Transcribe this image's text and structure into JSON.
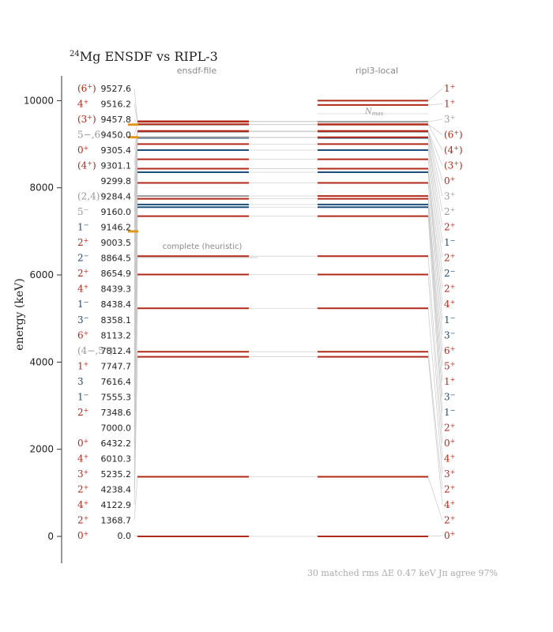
{
  "chart_data": {
    "type": "level-scheme",
    "title_mass": "24",
    "title_rest": "Mg  ENSDF vs RIPL-3",
    "ylabel": "energy (keV)",
    "yticks": [
      0,
      2000,
      4000,
      6000,
      8000,
      10000
    ],
    "ylim": [
      -600,
      10550
    ],
    "left_column_label": "ensdf-file",
    "right_column_label": "ripl3-local",
    "annotation_text": "complete (heuristic)",
    "annotation_energy": 6400,
    "nmax_label": "N",
    "nmax_sub": "max",
    "nmax_energy": 9700,
    "summary": "30 matched    rms ΔE 0.47 keV    Jπ agree 97%",
    "colors": {
      "even": "#b22a19",
      "odd": "#1c4f7c",
      "uncertain": "#999999",
      "marker": "#e0961e"
    },
    "marker_energies": [
      9450.0,
      9160.0,
      7000.0
    ],
    "ensdf_levels": [
      {
        "e": "0.0",
        "jp": "0+",
        "p": "even"
      },
      {
        "e": "1368.7",
        "jp": "2+",
        "p": "even"
      },
      {
        "e": "4122.9",
        "jp": "4+",
        "p": "even"
      },
      {
        "e": "4238.4",
        "jp": "2+",
        "p": "even"
      },
      {
        "e": "5235.2",
        "jp": "3+",
        "p": "even"
      },
      {
        "e": "6010.3",
        "jp": "4+",
        "p": "even"
      },
      {
        "e": "6432.2",
        "jp": "0+",
        "p": "even"
      },
      {
        "e": "7000.0",
        "jp": "",
        "p": "none"
      },
      {
        "e": "7348.6",
        "jp": "2+",
        "p": "even"
      },
      {
        "e": "7555.3",
        "jp": "1−",
        "p": "odd"
      },
      {
        "e": "7616.4",
        "jp": "3",
        "p": "odd"
      },
      {
        "e": "7747.7",
        "jp": "1+",
        "p": "even"
      },
      {
        "e": "7812.4",
        "jp": "(4−,5+)",
        "p": "uncertain"
      },
      {
        "e": "8113.2",
        "jp": "6+",
        "p": "even"
      },
      {
        "e": "8358.1",
        "jp": "3−",
        "p": "odd"
      },
      {
        "e": "8438.4",
        "jp": "1−",
        "p": "odd"
      },
      {
        "e": "8439.3",
        "jp": "4+",
        "p": "even"
      },
      {
        "e": "8654.9",
        "jp": "2+",
        "p": "even"
      },
      {
        "e": "8864.5",
        "jp": "2−",
        "p": "odd"
      },
      {
        "e": "9003.5",
        "jp": "2+",
        "p": "even"
      },
      {
        "e": "9146.2",
        "jp": "1−",
        "p": "odd"
      },
      {
        "e": "9160.0",
        "jp": "5−",
        "p": "uncertain"
      },
      {
        "e": "9284.4",
        "jp": "(2,4)+",
        "p": "uncertain"
      },
      {
        "e": "9299.8",
        "jp": "",
        "p": "odd"
      },
      {
        "e": "9301.1",
        "jp": "(4+)",
        "p": "even"
      },
      {
        "e": "9305.4",
        "jp": "0+",
        "p": "even"
      },
      {
        "e": "9450.0",
        "jp": "5−,6+",
        "p": "uncertain"
      },
      {
        "e": "9457.8",
        "jp": "(3+)",
        "p": "even"
      },
      {
        "e": "9516.2",
        "jp": "4+",
        "p": "even"
      },
      {
        "e": "9527.6",
        "jp": "(6+)",
        "p": "even"
      }
    ],
    "ripl_levels": [
      {
        "e": 0.0,
        "jp": "0+",
        "p": "even"
      },
      {
        "e": 1368.7,
        "jp": "2+",
        "p": "even"
      },
      {
        "e": 4122.9,
        "jp": "4+",
        "p": "even"
      },
      {
        "e": 4238.4,
        "jp": "2+",
        "p": "even"
      },
      {
        "e": 5235.2,
        "jp": "3+",
        "p": "even"
      },
      {
        "e": 6010.3,
        "jp": "4+",
        "p": "even"
      },
      {
        "e": 6432.2,
        "jp": "0+",
        "p": "even"
      },
      {
        "e": 7348.6,
        "jp": "2+",
        "p": "even"
      },
      {
        "e": 7555.3,
        "jp": "1−",
        "p": "odd"
      },
      {
        "e": 7616.4,
        "jp": "3−",
        "p": "odd"
      },
      {
        "e": 7747.7,
        "jp": "1+",
        "p": "even"
      },
      {
        "e": 7812.4,
        "jp": "5+",
        "p": "even"
      },
      {
        "e": 8113.2,
        "jp": "6+",
        "p": "even"
      },
      {
        "e": 8358.1,
        "jp": "3−",
        "p": "odd"
      },
      {
        "e": 8438.4,
        "jp": "1−",
        "p": "odd"
      },
      {
        "e": 8439.3,
        "jp": "4+",
        "p": "even"
      },
      {
        "e": 8654.9,
        "jp": "2+",
        "p": "even"
      },
      {
        "e": 8864.5,
        "jp": "2−",
        "p": "odd"
      },
      {
        "e": 9003.5,
        "jp": "2+",
        "p": "even"
      },
      {
        "e": 9146.2,
        "jp": "1−",
        "p": "odd"
      },
      {
        "e": 9160.0,
        "jp": "2+",
        "p": "even"
      },
      {
        "e": 9284.4,
        "jp": "2+",
        "p": "uncertain"
      },
      {
        "e": 9299.8,
        "jp": "3+",
        "p": "uncertain"
      },
      {
        "e": 9301.1,
        "jp": "0+",
        "p": "even"
      },
      {
        "e": 9305.4,
        "jp": "(3+)",
        "p": "even"
      },
      {
        "e": 9450.0,
        "jp": "(4+)",
        "p": "even"
      },
      {
        "e": 9457.8,
        "jp": "(6+)",
        "p": "even"
      },
      {
        "e": 9516.2,
        "jp": "3+",
        "p": "uncertain"
      },
      {
        "e": 9900.0,
        "jp": "1+",
        "p": "even"
      },
      {
        "e": 10000.0,
        "jp": "1+",
        "p": "even"
      }
    ]
  }
}
